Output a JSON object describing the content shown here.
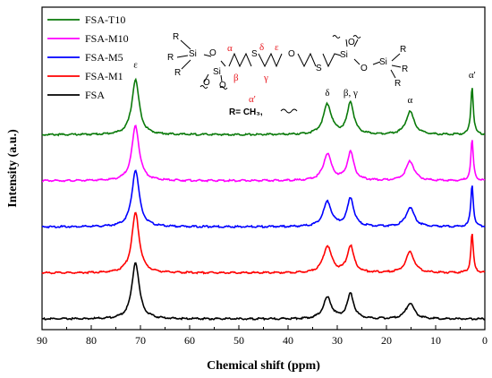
{
  "chart_data": {
    "type": "line",
    "title": "",
    "xlabel": "Chemical shift (ppm)",
    "ylabel": "Intensity (a.u.)",
    "xlim": [
      90,
      0
    ],
    "x_reversed": true,
    "x_ticks": [
      "90",
      "80",
      "70",
      "60",
      "50",
      "40",
      "30",
      "20",
      "10",
      "0"
    ],
    "y_ticks_shown": false,
    "legend_position": "top-left",
    "series": [
      {
        "name": "FSA-T10",
        "color": "#0a7a0a",
        "baseline": 5.2,
        "peaks": [
          {
            "x": 71.0,
            "h": 1.55,
            "w": 0.9
          },
          {
            "x": 32.0,
            "h": 0.85,
            "w": 1.0
          },
          {
            "x": 27.3,
            "h": 0.9,
            "w": 0.8
          },
          {
            "x": 15.2,
            "h": 0.65,
            "w": 1.0
          },
          {
            "x": 2.6,
            "h": 1.35,
            "w": 0.3
          }
        ]
      },
      {
        "name": "FSA-M10",
        "color": "#ff00ff",
        "baseline": 3.9,
        "peaks": [
          {
            "x": 71.0,
            "h": 1.55,
            "w": 0.9
          },
          {
            "x": 32.0,
            "h": 0.75,
            "w": 1.0
          },
          {
            "x": 27.3,
            "h": 0.8,
            "w": 0.8
          },
          {
            "x": 15.2,
            "h": 0.55,
            "w": 1.0
          },
          {
            "x": 2.6,
            "h": 1.15,
            "w": 0.3
          }
        ]
      },
      {
        "name": "FSA-M5",
        "color": "#0000ff",
        "baseline": 2.6,
        "peaks": [
          {
            "x": 71.0,
            "h": 1.6,
            "w": 0.9
          },
          {
            "x": 32.0,
            "h": 0.7,
            "w": 1.0
          },
          {
            "x": 27.3,
            "h": 0.8,
            "w": 0.8
          },
          {
            "x": 15.2,
            "h": 0.55,
            "w": 1.0
          },
          {
            "x": 2.6,
            "h": 1.2,
            "w": 0.3
          }
        ]
      },
      {
        "name": "FSA-M1",
        "color": "#ff0000",
        "baseline": 1.3,
        "peaks": [
          {
            "x": 71.0,
            "h": 1.7,
            "w": 0.9
          },
          {
            "x": 32.0,
            "h": 0.75,
            "w": 1.0
          },
          {
            "x": 27.3,
            "h": 0.75,
            "w": 0.8
          },
          {
            "x": 15.2,
            "h": 0.6,
            "w": 1.0
          },
          {
            "x": 2.6,
            "h": 1.1,
            "w": 0.3
          }
        ]
      },
      {
        "name": "FSA",
        "color": "#000000",
        "baseline": 0.0,
        "peaks": [
          {
            "x": 71.0,
            "h": 1.6,
            "w": 0.9
          },
          {
            "x": 32.0,
            "h": 0.6,
            "w": 1.0
          },
          {
            "x": 27.3,
            "h": 0.7,
            "w": 0.8
          },
          {
            "x": 15.2,
            "h": 0.45,
            "w": 1.0
          }
        ]
      }
    ],
    "ylim": [
      -0.3,
      8.8
    ],
    "peak_labels": [
      {
        "text": "ε",
        "x": 71.0,
        "y": 7.1
      },
      {
        "text": "δ",
        "x": 32.0,
        "y": 6.3
      },
      {
        "text": "β, γ",
        "x": 27.3,
        "y": 6.3
      },
      {
        "text": "α",
        "x": 15.2,
        "y": 6.1
      },
      {
        "text": "α'",
        "x": 2.6,
        "y": 6.8
      }
    ],
    "structure": {
      "r_label_left_top": "R",
      "r_label_left_mid": "R",
      "r_label_left_bot": "R",
      "si": "Si",
      "o": "O",
      "s": "S",
      "alpha": "α",
      "beta": "β",
      "gamma": "γ",
      "delta": "δ",
      "epsilon": "ε",
      "alpha_prime": "α'",
      "r_definition": "R= CH₃,"
    }
  }
}
